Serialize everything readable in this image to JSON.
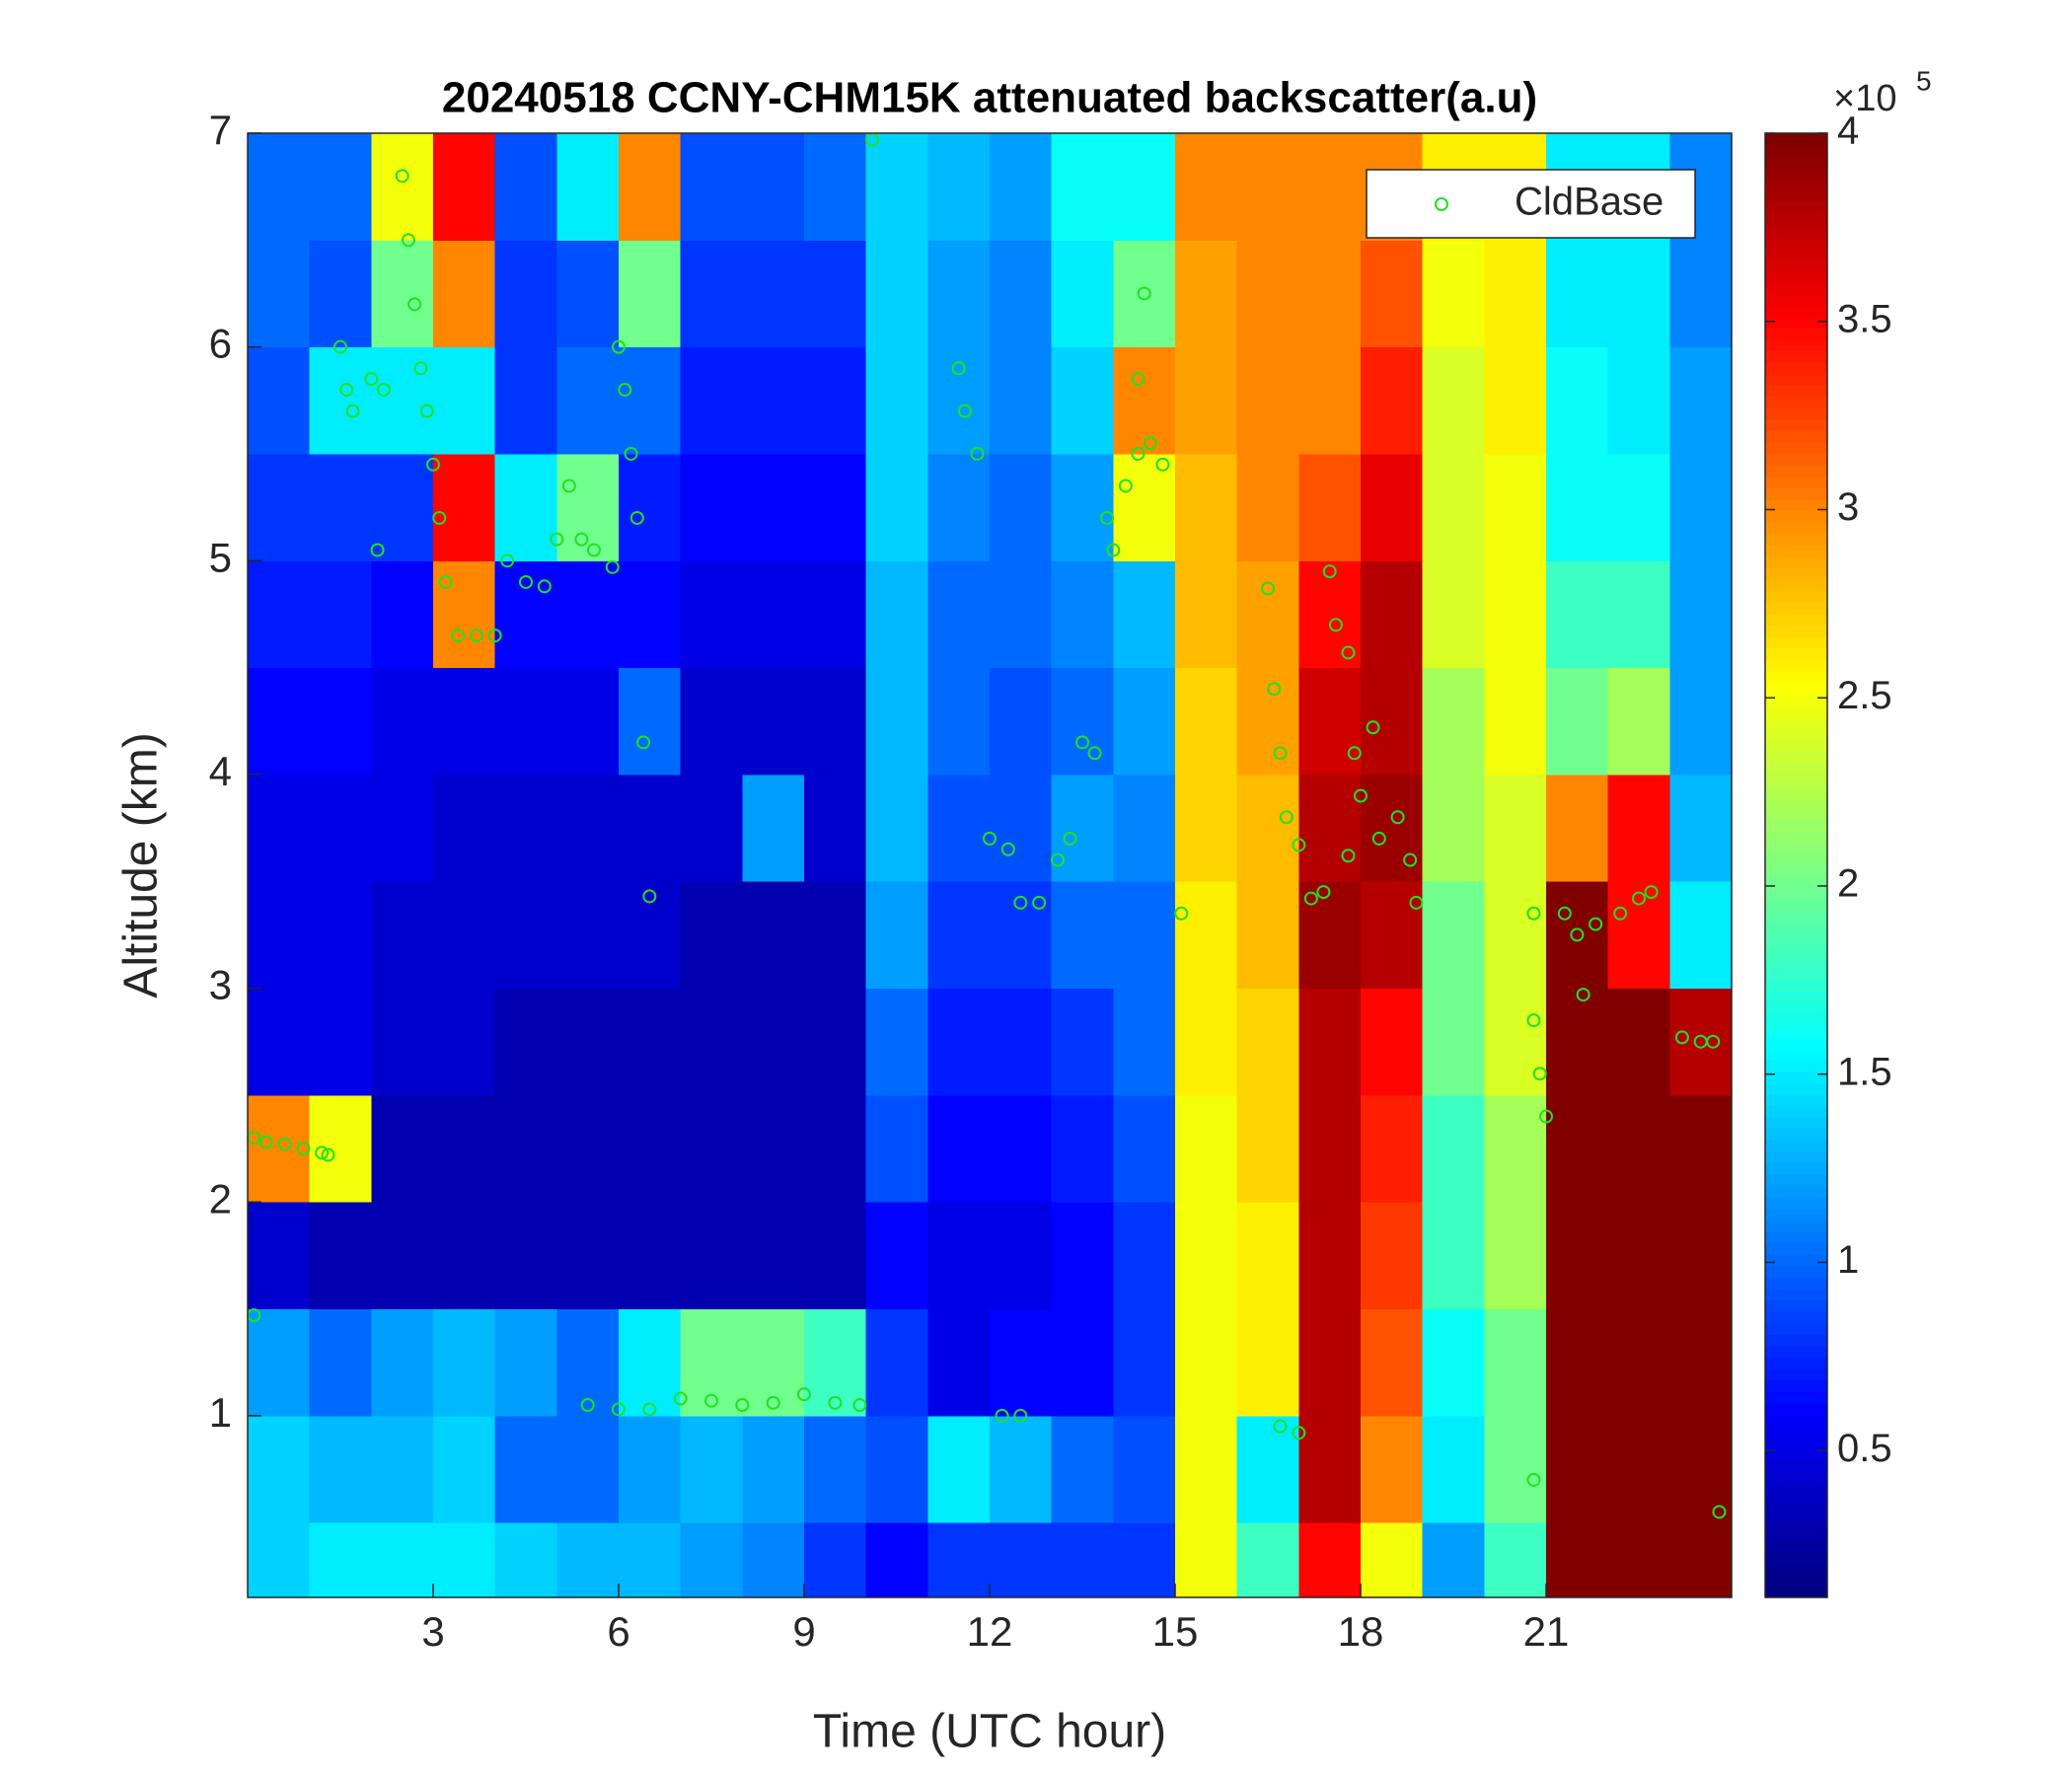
{
  "chart_data": {
    "type": "heatmap",
    "title": "20240518 CCNY-CHM15K attenuated backscatter(a.u)",
    "xlabel": "Time (UTC hour)",
    "ylabel": "Altitude (km)",
    "xlim": [
      0,
      24
    ],
    "xticks": [
      3,
      6,
      9,
      12,
      15,
      18,
      21
    ],
    "ylim": [
      0.15,
      7
    ],
    "yticks": [
      1,
      2,
      3,
      4,
      5,
      6,
      7
    ],
    "xbins": [
      0,
      1,
      2,
      3,
      4,
      5,
      6,
      7,
      8,
      9,
      10,
      11,
      12,
      13,
      14,
      15,
      16,
      17,
      18,
      19,
      20,
      21,
      22,
      23,
      24
    ],
    "ybins": [
      0.15,
      0.5,
      1,
      1.5,
      2,
      2.5,
      3,
      3.5,
      4,
      4.5,
      5,
      5.5,
      6,
      6.5,
      7
    ],
    "z": [
      [
        1.4,
        1.4,
        1.2,
        0.4,
        3.0,
        0.5,
        0.5,
        0.5,
        0.6,
        0.7,
        0.8,
        0.9,
        1.0,
        1.0
      ],
      [
        1.5,
        1.3,
        1.0,
        0.3,
        2.5,
        0.5,
        0.5,
        0.5,
        0.6,
        0.7,
        0.8,
        1.5,
        0.9,
        1.0
      ],
      [
        1.5,
        1.3,
        1.2,
        0.3,
        0.3,
        0.4,
        0.4,
        0.5,
        0.5,
        0.6,
        0.8,
        1.5,
        2.0,
        2.5
      ],
      [
        1.5,
        1.4,
        1.3,
        0.3,
        0.3,
        0.4,
        0.4,
        0.4,
        0.5,
        3.0,
        3.5,
        1.5,
        3.0,
        3.5
      ],
      [
        1.4,
        1.0,
        1.2,
        0.3,
        0.3,
        0.3,
        0.4,
        0.4,
        0.5,
        0.6,
        1.5,
        0.8,
        0.8,
        0.9
      ],
      [
        1.3,
        1.0,
        1.0,
        0.3,
        0.3,
        0.3,
        0.4,
        0.4,
        0.5,
        0.6,
        2.0,
        1.0,
        0.9,
        1.5
      ],
      [
        1.3,
        1.2,
        1.5,
        0.3,
        0.3,
        0.3,
        0.4,
        0.4,
        1.0,
        0.6,
        0.7,
        1.0,
        2.0,
        3.0
      ],
      [
        1.2,
        1.3,
        2.0,
        0.3,
        0.3,
        0.3,
        0.3,
        0.4,
        0.4,
        0.5,
        0.6,
        0.7,
        0.8,
        0.9
      ],
      [
        1.1,
        1.2,
        2.0,
        0.3,
        0.3,
        0.3,
        0.3,
        1.2,
        0.4,
        0.5,
        0.6,
        0.7,
        0.8,
        0.9
      ],
      [
        0.8,
        1.0,
        1.8,
        0.3,
        0.3,
        0.3,
        0.3,
        0.4,
        0.4,
        0.5,
        0.6,
        0.7,
        0.8,
        1.0
      ],
      [
        0.6,
        0.9,
        0.8,
        0.6,
        0.9,
        1.0,
        1.2,
        1.3,
        1.3,
        1.3,
        1.4,
        1.4,
        1.4,
        1.4
      ],
      [
        0.8,
        1.5,
        0.5,
        0.5,
        0.6,
        0.7,
        0.8,
        0.9,
        1.0,
        1.0,
        1.1,
        1.2,
        1.2,
        1.3
      ],
      [
        0.8,
        1.3,
        0.6,
        0.5,
        0.6,
        0.7,
        0.8,
        0.9,
        0.9,
        1.0,
        1.0,
        1.1,
        1.1,
        1.2
      ],
      [
        0.8,
        1.0,
        0.6,
        0.6,
        0.7,
        0.8,
        1.0,
        1.2,
        1.0,
        1.1,
        1.2,
        1.4,
        1.5,
        1.6
      ],
      [
        0.8,
        0.9,
        0.8,
        0.8,
        0.9,
        1.0,
        1.0,
        1.1,
        1.2,
        1.3,
        2.5,
        3.0,
        2.0,
        1.6
      ],
      [
        2.5,
        2.5,
        2.5,
        2.5,
        2.5,
        2.6,
        2.6,
        2.7,
        2.7,
        2.8,
        2.8,
        2.9,
        2.9,
        3.0
      ],
      [
        1.8,
        1.5,
        2.6,
        2.6,
        2.7,
        2.7,
        2.8,
        2.8,
        2.9,
        2.9,
        3.0,
        3.0,
        3.0,
        3.0
      ],
      [
        3.5,
        3.8,
        3.8,
        3.8,
        3.8,
        3.8,
        3.9,
        3.8,
        3.7,
        3.5,
        3.2,
        3.0,
        3.0,
        3.0
      ],
      [
        2.5,
        3.0,
        3.2,
        3.3,
        3.4,
        3.5,
        3.8,
        3.9,
        3.8,
        3.8,
        3.6,
        3.4,
        3.2,
        3.0
      ],
      [
        1.2,
        1.5,
        1.6,
        1.8,
        1.8,
        2.0,
        2.0,
        2.2,
        2.2,
        2.4,
        2.4,
        2.4,
        2.5,
        2.6
      ],
      [
        1.8,
        2.0,
        2.0,
        2.2,
        2.2,
        2.4,
        2.4,
        2.4,
        2.5,
        2.5,
        2.5,
        2.6,
        2.6,
        2.6
      ],
      [
        4,
        4,
        4,
        4,
        4,
        4,
        4,
        3.0,
        2.0,
        1.8,
        1.6,
        1.6,
        1.5,
        1.5
      ],
      [
        4,
        4,
        4,
        4,
        4,
        4,
        3.5,
        3.5,
        2.2,
        1.8,
        1.6,
        1.5,
        1.5,
        1.5
      ],
      [
        4,
        4,
        4,
        4,
        4,
        3.8,
        1.5,
        1.3,
        1.2,
        1.2,
        1.2,
        1.2,
        1.1,
        1.1
      ]
    ],
    "colormap": "jet",
    "clim": [
      0.11,
      4
    ],
    "cticks": [
      0.5,
      1,
      1.5,
      2,
      2.5,
      3,
      3.5,
      4
    ],
    "cexponent_base": "×10",
    "cexponent": "5",
    "legend": "upper right",
    "series": [
      {
        "name": "CldBase",
        "type": "scatter",
        "marker": "open-circle",
        "color": "#22e022",
        "x": [
          0.1,
          0.3,
          0.6,
          0.9,
          1.2,
          1.3,
          0.1,
          1.5,
          1.6,
          1.7,
          2.0,
          2.2,
          2.1,
          2.5,
          2.6,
          2.7,
          2.8,
          2.9,
          3.0,
          3.1,
          3.2,
          3.4,
          3.7,
          4.0,
          4.2,
          4.5,
          4.8,
          5.0,
          5.2,
          5.4,
          5.6,
          5.9,
          6.0,
          6.1,
          6.2,
          6.3,
          6.4,
          6.5,
          10.1,
          5.5,
          6.0,
          6.5,
          7.0,
          7.5,
          8.0,
          8.5,
          9.0,
          9.5,
          9.9,
          11.5,
          11.6,
          11.8,
          12.0,
          12.3,
          12.5,
          12.8,
          13.1,
          13.3,
          13.5,
          13.7,
          12.2,
          12.5,
          13.9,
          14.0,
          14.2,
          14.4,
          14.6,
          14.8,
          14.4,
          14.5,
          15.1,
          16.5,
          16.6,
          16.7,
          16.8,
          17.0,
          17.2,
          17.4,
          16.7,
          17.0,
          17.5,
          17.6,
          17.8,
          17.9,
          18.0,
          18.2,
          18.3,
          18.6,
          18.8,
          18.9,
          17.8,
          20.8,
          20.8,
          20.9,
          21.0,
          20.8,
          21.3,
          21.5,
          21.8,
          22.2,
          22.5,
          21.6,
          22.7,
          23.2,
          23.5,
          23.7,
          23.8
        ],
        "y": [
          2.3,
          2.28,
          2.27,
          2.25,
          2.23,
          2.22,
          1.47,
          6.0,
          5.8,
          5.7,
          5.85,
          5.8,
          5.05,
          6.8,
          6.5,
          6.2,
          5.9,
          5.7,
          5.45,
          5.2,
          4.9,
          4.65,
          4.65,
          4.65,
          5.0,
          4.9,
          4.88,
          5.1,
          5.35,
          5.1,
          5.05,
          4.97,
          6.0,
          5.8,
          5.5,
          5.2,
          4.15,
          3.43,
          6.97,
          1.05,
          1.03,
          1.03,
          1.08,
          1.07,
          1.05,
          1.06,
          1.1,
          1.06,
          1.05,
          5.9,
          5.7,
          5.5,
          3.7,
          3.65,
          3.4,
          3.4,
          3.6,
          3.7,
          4.15,
          4.1,
          1.0,
          1.0,
          5.2,
          5.05,
          5.35,
          5.5,
          5.55,
          5.45,
          5.85,
          6.25,
          3.35,
          4.87,
          4.4,
          4.1,
          3.8,
          3.67,
          3.42,
          3.45,
          0.95,
          0.92,
          4.95,
          4.7,
          4.57,
          4.1,
          3.9,
          4.22,
          3.7,
          3.8,
          3.6,
          3.4,
          3.62,
          3.35,
          2.85,
          2.6,
          2.4,
          0.7,
          3.35,
          3.25,
          3.3,
          3.35,
          3.42,
          2.97,
          3.45,
          2.77,
          2.75,
          2.75,
          0.55
        ]
      }
    ]
  }
}
